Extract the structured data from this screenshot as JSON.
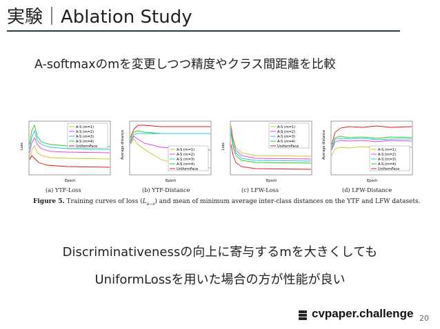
{
  "slide": {
    "title": "実験｜Ablation Study",
    "subtitle": "A-softmaxのmを変更しつつ精度やクラス間距離を比較",
    "conclusion_line1": "Discriminativenessの向上に寄与するmを大きくしても",
    "conclusion_line2": "UniformLossを用いた場合の方が性能が良い",
    "brand": "cvpaper.challenge",
    "page_number": "20"
  },
  "figure": {
    "caption_prefix": "Figure 5.",
    "caption_text_a": "Training curves of loss (",
    "caption_math": "L",
    "caption_math_sub": "a−s",
    "caption_text_b": ") and mean of minimum average inter-class distances on the YTF and LFW datasets.",
    "panels": [
      {
        "label": "(a)  YTF-Loss",
        "ylabel": "Loss",
        "xlabel": "Epoch"
      },
      {
        "label": "(b)  YTF-Distance",
        "ylabel": "Average distance",
        "xlabel": "Epoch"
      },
      {
        "label": "(c)  LFW-Loss",
        "ylabel": "Loss",
        "xlabel": "Epoch"
      },
      {
        "label": "(d)  LFW-Distance",
        "ylabel": "Average distance",
        "xlabel": "Epoch"
      }
    ],
    "legend": [
      "A-S (m=1)",
      "A-S (m=2)",
      "A-S (m=3)",
      "A-S (m=4)",
      "UniformFace"
    ],
    "colors": {
      "m1": "#c8c820",
      "m2": "#e040e0",
      "m3": "#20c8e0",
      "m4": "#20d020",
      "uniform": "#e01010"
    }
  },
  "colors": {
    "title_rule": "#1f3b5c",
    "text": "#222222"
  }
}
